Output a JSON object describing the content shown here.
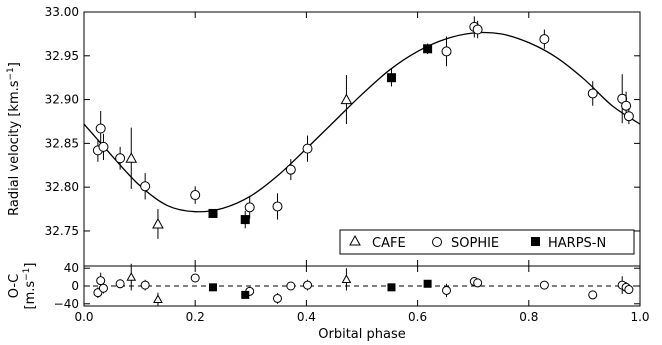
{
  "chart_data": [
    {
      "type": "scatter",
      "panel": "radial-velocity",
      "ylabel_parts": [
        "Radial velocity [km.s",
        "−1",
        "]"
      ],
      "xlim": [
        0.0,
        1.0
      ],
      "ylim": [
        32.71,
        33.0
      ],
      "yticks": [
        "32.75",
        "32.80",
        "32.85",
        "32.90",
        "32.95",
        "33.00"
      ],
      "ytick_values": [
        32.75,
        32.8,
        32.85,
        32.9,
        32.95,
        33.0
      ],
      "grid": false,
      "legend_position": "bottom-right",
      "legend": [
        "CAFE",
        "SOPHIE",
        "HARPS-N"
      ],
      "model_curve": {
        "x": [
          0.0,
          0.05,
          0.1,
          0.15,
          0.2,
          0.25,
          0.3,
          0.35,
          0.4,
          0.45,
          0.5,
          0.55,
          0.6,
          0.65,
          0.7,
          0.75,
          0.8,
          0.85,
          0.9,
          0.95,
          1.0
        ],
        "y": [
          32.872,
          32.836,
          32.802,
          32.779,
          32.772,
          32.776,
          32.79,
          32.814,
          32.844,
          32.875,
          32.906,
          32.934,
          32.955,
          32.969,
          32.976,
          32.975,
          32.965,
          32.948,
          32.923,
          32.893,
          32.872
        ]
      },
      "series": [
        {
          "name": "CAFE",
          "marker": "open-triangle",
          "x": [
            0.085,
            0.133,
            0.472
          ],
          "y": [
            32.833,
            32.758,
            32.9
          ],
          "err": [
            0.035,
            0.017,
            0.028
          ]
        },
        {
          "name": "SOPHIE",
          "marker": "open-circle",
          "x": [
            0.025,
            0.03,
            0.035,
            0.065,
            0.11,
            0.2,
            0.298,
            0.348,
            0.372,
            0.402,
            0.652,
            0.702,
            0.708,
            0.828,
            0.915,
            0.968,
            0.975,
            0.98
          ],
          "y": [
            32.842,
            32.867,
            32.846,
            32.833,
            32.801,
            32.791,
            32.777,
            32.778,
            32.82,
            32.844,
            32.955,
            32.983,
            32.98,
            32.969,
            32.907,
            32.901,
            32.893,
            32.881
          ],
          "err": [
            0.013,
            0.02,
            0.015,
            0.013,
            0.015,
            0.01,
            0.013,
            0.015,
            0.012,
            0.015,
            0.017,
            0.012,
            0.01,
            0.011,
            0.014,
            0.028,
            0.016,
            0.009
          ]
        },
        {
          "name": "HARPS-N",
          "marker": "filled-square",
          "x": [
            0.232,
            0.29,
            0.553,
            0.618
          ],
          "y": [
            32.77,
            32.763,
            32.925,
            32.958
          ],
          "err": [
            0.004,
            0.01,
            0.01,
            0.006
          ]
        }
      ]
    },
    {
      "type": "scatter",
      "panel": "residuals",
      "ylabel_parts": [
        "O-C",
        "[m.s",
        "−1",
        "]"
      ],
      "xlabel": "Orbital phase",
      "xlim": [
        0.0,
        1.0
      ],
      "ylim": [
        -45,
        45
      ],
      "xticks": [
        "0.0",
        "0.2",
        "0.4",
        "0.6",
        "0.8",
        "1.0"
      ],
      "xtick_values": [
        0.0,
        0.2,
        0.4,
        0.6,
        0.8,
        1.0
      ],
      "yticks": [
        "−40",
        "0",
        "40"
      ],
      "ytick_values": [
        -40,
        0,
        40
      ],
      "zero_line": "dashed",
      "series": [
        {
          "name": "CAFE",
          "marker": "open-triangle",
          "x": [
            0.085,
            0.133,
            0.472
          ],
          "y": [
            20,
            -30,
            15
          ],
          "err": [
            30,
            15,
            25
          ]
        },
        {
          "name": "SOPHIE",
          "marker": "open-circle",
          "x": [
            0.025,
            0.03,
            0.035,
            0.065,
            0.11,
            0.2,
            0.298,
            0.348,
            0.372,
            0.402,
            0.652,
            0.702,
            0.708,
            0.828,
            0.915,
            0.968,
            0.975,
            0.98
          ],
          "y": [
            -15,
            12,
            -5,
            5,
            2,
            18,
            -12,
            -28,
            0,
            2,
            -10,
            10,
            7,
            2,
            -20,
            2,
            -3,
            -8
          ],
          "err": [
            12,
            18,
            12,
            10,
            12,
            8,
            10,
            12,
            8,
            12,
            15,
            10,
            8,
            8,
            10,
            20,
            12,
            8
          ]
        },
        {
          "name": "HARPS-N",
          "marker": "filled-square",
          "x": [
            0.232,
            0.29,
            0.553,
            0.618
          ],
          "y": [
            -3,
            -20,
            -3,
            5
          ],
          "err": [
            4,
            8,
            6,
            5
          ]
        }
      ]
    }
  ]
}
